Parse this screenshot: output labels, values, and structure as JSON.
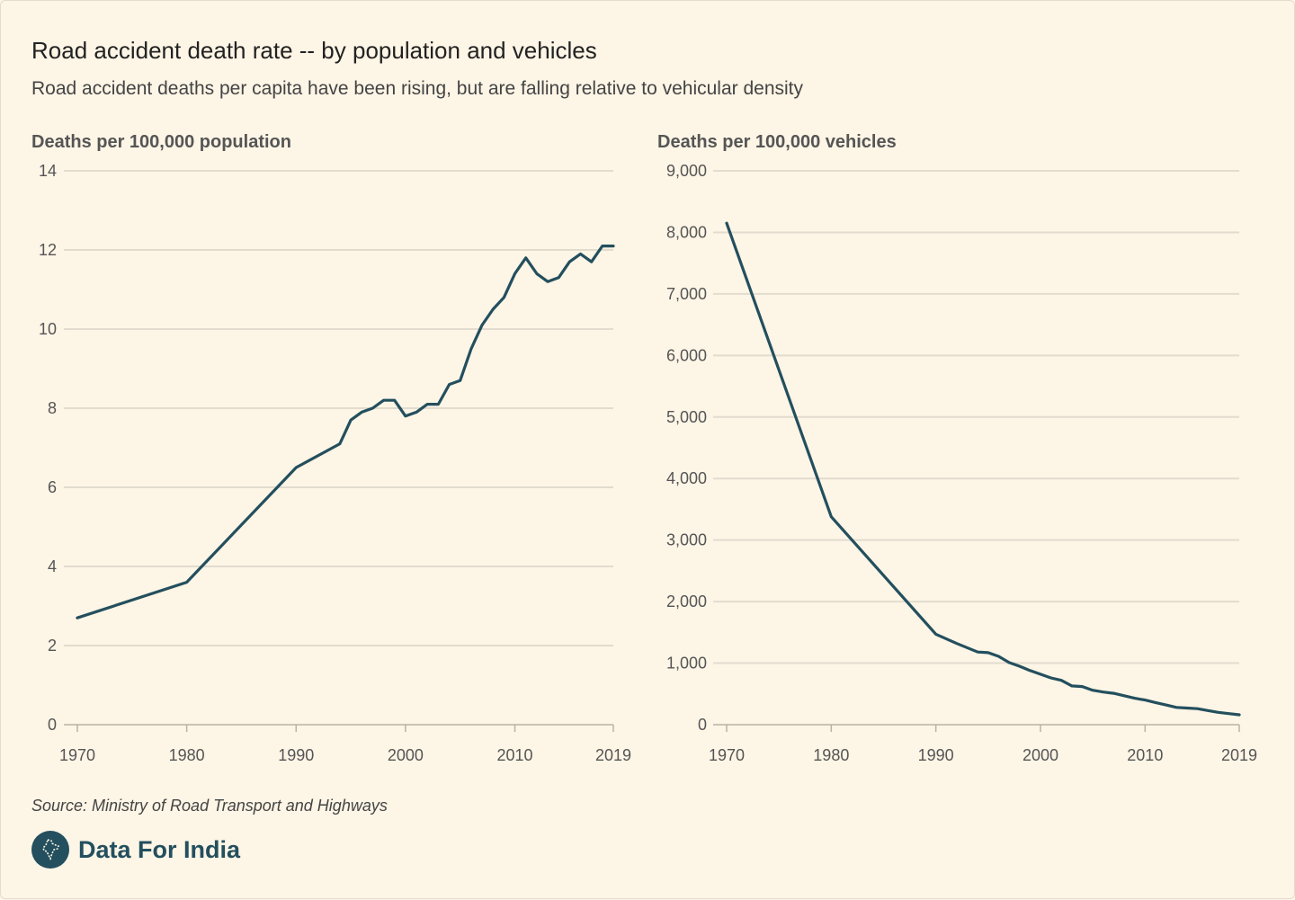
{
  "title": "Road accident death rate -- by population and vehicles",
  "subtitle": "Road accident deaths per capita have been rising, but are falling relative to vehicular density",
  "source": "Source: Ministry of Road Transport and Highways",
  "brand": {
    "name": "Data For India",
    "logo_icon": "india-map-icon"
  },
  "colors": {
    "line": "#234f5e",
    "grid": "#e2dccf",
    "axis": "#b9b2a6",
    "text": "#555555",
    "background": "#fdf5e6"
  },
  "chart_data": [
    {
      "type": "line",
      "title": "Deaths per 100,000 population",
      "ylabel": "Deaths per 100,000 population",
      "xlabel": "",
      "x_ticks": [
        1970,
        1980,
        1990,
        2000,
        2010,
        2019
      ],
      "y_ticks": [
        0,
        2,
        4,
        6,
        8,
        10,
        12,
        14
      ],
      "y_tick_labels": [
        "0",
        "2",
        "4",
        "6",
        "8",
        "10",
        "12",
        "14"
      ],
      "xlim": [
        1970,
        2019
      ],
      "ylim": [
        0,
        14
      ],
      "grid": true,
      "series": [
        {
          "name": "Deaths per 100,000 population",
          "x": [
            1970,
            1980,
            1990,
            1994,
            1995,
            1996,
            1997,
            1998,
            1999,
            2000,
            2001,
            2002,
            2003,
            2004,
            2005,
            2006,
            2007,
            2008,
            2009,
            2010,
            2011,
            2012,
            2013,
            2014,
            2015,
            2016,
            2017,
            2018,
            2019
          ],
          "values": [
            2.7,
            3.6,
            6.5,
            7.1,
            7.7,
            7.9,
            8.0,
            8.2,
            8.2,
            7.8,
            7.9,
            8.1,
            8.1,
            8.6,
            8.7,
            9.5,
            10.1,
            10.5,
            10.8,
            11.4,
            11.8,
            11.4,
            11.2,
            11.3,
            11.7,
            11.9,
            11.7,
            12.1,
            12.1
          ]
        }
      ]
    },
    {
      "type": "line",
      "title": "Deaths per 100,000 vehicles",
      "ylabel": "Deaths per 100,000 vehicles",
      "xlabel": "",
      "x_ticks": [
        1970,
        1980,
        1990,
        2000,
        2010,
        2019
      ],
      "y_ticks": [
        0,
        1000,
        2000,
        3000,
        4000,
        5000,
        6000,
        7000,
        8000,
        9000
      ],
      "y_tick_labels": [
        "0",
        "1,000",
        "2,000",
        "3,000",
        "4,000",
        "5,000",
        "6,000",
        "7,000",
        "8,000",
        "9,000"
      ],
      "xlim": [
        1970,
        2019
      ],
      "ylim": [
        0,
        9000
      ],
      "grid": true,
      "series": [
        {
          "name": "Deaths per 100,000 vehicles",
          "x": [
            1970,
            1980,
            1990,
            1992,
            1994,
            1995,
            1996,
            1997,
            1998,
            1999,
            2000,
            2001,
            2002,
            2003,
            2004,
            2005,
            2006,
            2007,
            2008,
            2009,
            2010,
            2011,
            2012,
            2013,
            2014,
            2015,
            2016,
            2017,
            2018,
            2019
          ],
          "values": [
            8150,
            3380,
            1470,
            1320,
            1180,
            1170,
            1110,
            1010,
            950,
            880,
            820,
            760,
            720,
            630,
            620,
            560,
            530,
            510,
            470,
            430,
            400,
            360,
            320,
            280,
            270,
            260,
            230,
            200,
            180,
            160
          ]
        }
      ]
    }
  ]
}
